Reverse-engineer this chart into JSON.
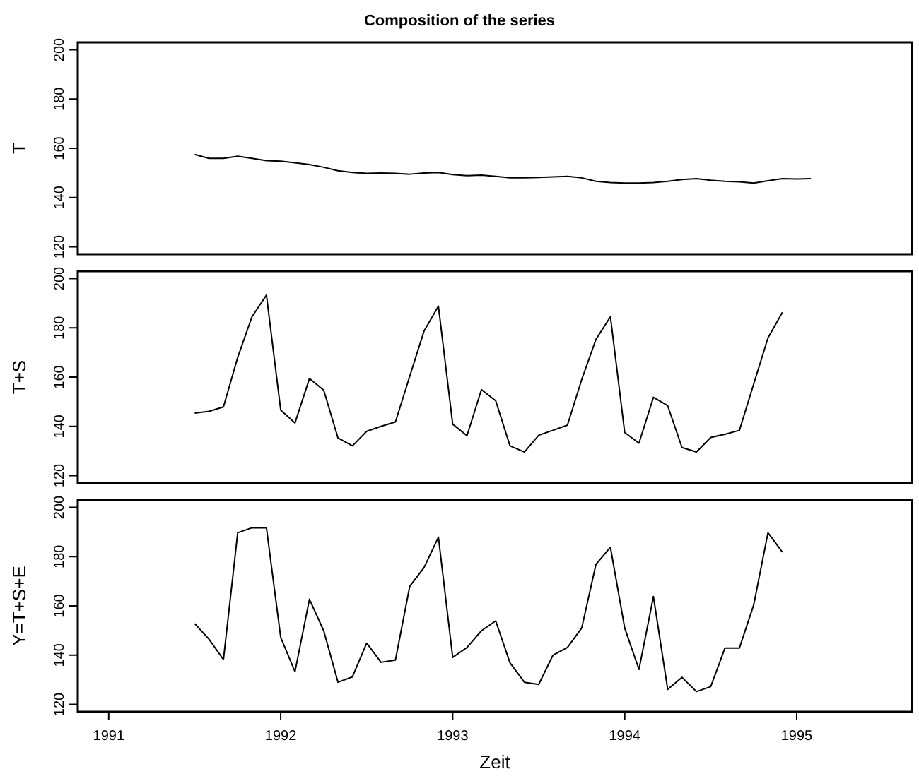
{
  "chart_data": [
    {
      "type": "line",
      "title": "Composition of the series",
      "ylabel": "T",
      "xlim": [
        1990.82,
        1995.67
      ],
      "ylim": [
        117,
        203
      ],
      "yticks": [
        120,
        140,
        160,
        180,
        200
      ],
      "tick_labels": "y",
      "series": [
        {
          "color": "#000000",
          "x": [
            1991.5,
            1991.583,
            1991.667,
            1991.75,
            1991.833,
            1991.917,
            1992,
            1992.083,
            1992.167,
            1992.25,
            1992.333,
            1992.417,
            1992.5,
            1992.583,
            1992.667,
            1992.75,
            1992.833,
            1992.917,
            1993,
            1993.083,
            1993.167,
            1993.25,
            1993.333,
            1993.417,
            1993.5,
            1993.583,
            1993.667,
            1993.75,
            1993.833,
            1993.917,
            1994,
            1994.083,
            1994.167,
            1994.25,
            1994.333,
            1994.417,
            1994.5,
            1994.583,
            1994.667,
            1994.75,
            1994.833,
            1994.917,
            1995,
            1995.083
          ],
          "values": [
            157.5,
            155.9,
            155.9,
            156.8,
            155.9,
            155,
            154.8,
            154.1,
            153.4,
            152.3,
            150.9,
            150.2,
            149.8,
            150,
            149.8,
            149.5,
            150,
            150.2,
            149.3,
            148.9,
            149.1,
            148.6,
            148,
            148,
            148.2,
            148.4,
            148.6,
            148,
            146.6,
            146.1,
            145.9,
            145.9,
            146.1,
            146.6,
            147.3,
            147.7,
            147,
            146.6,
            146.4,
            145.9,
            146.8,
            147.7,
            147.5,
            147.7
          ]
        }
      ]
    },
    {
      "type": "line",
      "ylabel": "T+S",
      "xlim": [
        1990.82,
        1995.67
      ],
      "ylim": [
        117,
        203
      ],
      "yticks": [
        120,
        140,
        160,
        180,
        200
      ],
      "tick_labels": "y",
      "series": [
        {
          "color": "#000000",
          "x": [
            1991.5,
            1991.583,
            1991.667,
            1991.75,
            1991.833,
            1991.917,
            1992,
            1992.083,
            1992.167,
            1992.25,
            1992.333,
            1992.417,
            1992.5,
            1992.583,
            1992.667,
            1992.75,
            1992.833,
            1992.917,
            1993,
            1993.083,
            1993.167,
            1993.25,
            1993.333,
            1993.417,
            1993.5,
            1993.583,
            1993.667,
            1993.75,
            1993.833,
            1993.917,
            1994,
            1994.083,
            1994.167,
            1994.25,
            1994.333,
            1994.417,
            1994.5,
            1994.583,
            1994.667,
            1994.75,
            1994.833,
            1994.917
          ],
          "values": [
            145.4,
            146.1,
            147.9,
            168,
            184.5,
            193.3,
            146.6,
            141.4,
            159.4,
            154.7,
            135.3,
            132.1,
            138,
            140,
            141.8,
            160.3,
            178.6,
            188.8,
            140.9,
            136.2,
            154.9,
            150.4,
            132.1,
            129.6,
            136.4,
            138.4,
            140.5,
            159,
            175.3,
            184.5,
            137.5,
            133.2,
            151.8,
            148.4,
            131.4,
            129.6,
            135.5,
            136.8,
            138.4,
            157.2,
            175.9,
            186.3
          ]
        }
      ]
    },
    {
      "type": "line",
      "ylabel": "Y=T+S+E",
      "xlabel": "Zeit",
      "xlim": [
        1990.82,
        1995.67
      ],
      "xticks": [
        1991,
        1992,
        1993,
        1994,
        1995
      ],
      "ylim": [
        117,
        203
      ],
      "yticks": [
        120,
        140,
        160,
        180,
        200
      ],
      "series": [
        {
          "color": "#000000",
          "x": [
            1991.5,
            1991.583,
            1991.667,
            1991.75,
            1991.833,
            1991.917,
            1992,
            1992.083,
            1992.167,
            1992.25,
            1992.333,
            1992.417,
            1992.5,
            1992.583,
            1992.667,
            1992.75,
            1992.833,
            1992.917,
            1993,
            1993.083,
            1993.167,
            1993.25,
            1993.333,
            1993.417,
            1993.5,
            1993.583,
            1993.667,
            1993.75,
            1993.833,
            1993.917,
            1994,
            1994.083,
            1994.167,
            1994.25,
            1994.333,
            1994.417,
            1994.5,
            1994.583,
            1994.667,
            1994.75,
            1994.833,
            1994.917
          ],
          "values": [
            152.8,
            146.5,
            138.2,
            189.7,
            191.7,
            191.7,
            147.2,
            133.3,
            162.7,
            149.9,
            129,
            131.2,
            144.9,
            137.1,
            138,
            167.9,
            175.5,
            187.9,
            139.1,
            143.1,
            149.9,
            153.9,
            136.9,
            129,
            128.1,
            140,
            143.1,
            151,
            176.9,
            183.8,
            151,
            134.2,
            163.8,
            126.1,
            131,
            125.2,
            127.2,
            142.9,
            142.9,
            160.4,
            189.7,
            181.8
          ]
        }
      ]
    }
  ]
}
